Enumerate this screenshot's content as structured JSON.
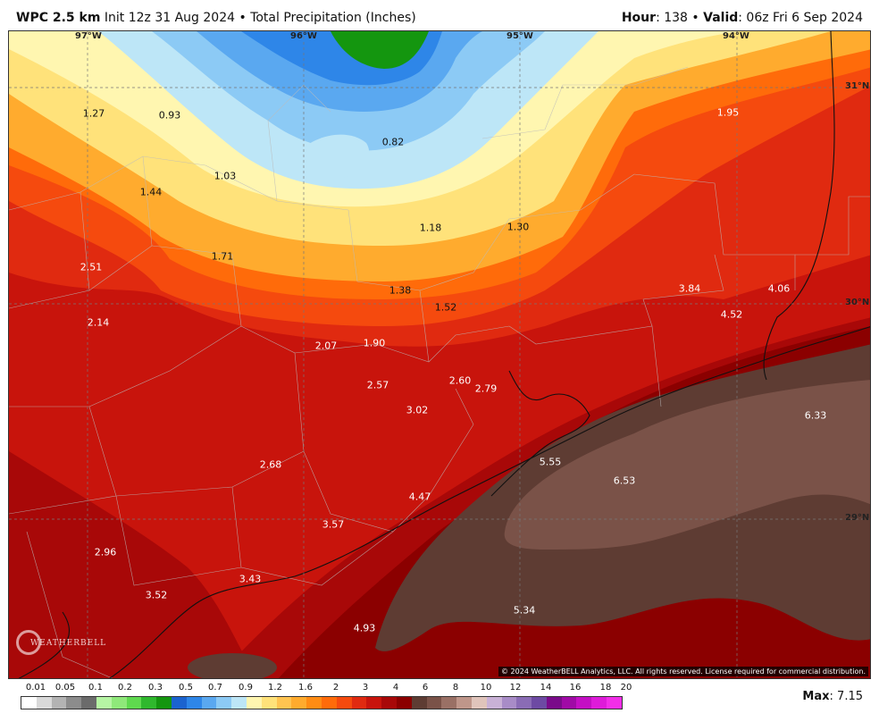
{
  "header": {
    "model": "WPC 2.5 km",
    "init": "Init 12z 31 Aug 2024",
    "bullet": "•",
    "product": "Total Precipitation (Inches)",
    "hour_label": "Hour",
    "hour_value": ": 138",
    "valid_label": "Valid",
    "valid_value": ": 06z Fri 6 Sep 2024"
  },
  "map": {
    "longitudes": [
      "97°W",
      "96°W",
      "95°W",
      "94°W"
    ],
    "latitudes": [
      "31°N",
      "30°N",
      "29°N"
    ],
    "values": [
      "1.27",
      "0.93",
      "0.82",
      "1.95",
      "1.03",
      "1.44",
      "1.18",
      "1.30",
      "2.51",
      "1.71",
      "1.38",
      "3.84",
      "4.06",
      "1.52",
      "4.52",
      "2.14",
      "2.07",
      "1.90",
      "2.60",
      "2.57",
      "2.79",
      "3.02",
      "6.33",
      "5.55",
      "2.68",
      "6.53",
      "4.47",
      "3.57",
      "2.96",
      "3.43",
      "3.52",
      "5.34",
      "4.93"
    ],
    "copyright": "© 2024 WeatherBELL Analytics, LLC. All rights reserved. License required for commercial distribution.",
    "logo": "WEATHERBELL"
  },
  "legend": {
    "labels": [
      "0.01",
      "0.05",
      "0.1",
      "0.2",
      "0.3",
      "0.5",
      "0.7",
      "0.9",
      "1.2",
      "1.6",
      "2",
      "3",
      "4",
      "6",
      "8",
      "10",
      "12",
      "14",
      "16",
      "18",
      "20"
    ],
    "colors": [
      "#ffffff",
      "#d9d9d9",
      "#b3b3b3",
      "#8c8c8c",
      "#6b6b6b",
      "#b6f5a4",
      "#8fe87a",
      "#5fd94f",
      "#2fb82d",
      "#14960f",
      "#1b63cf",
      "#2e86e8",
      "#5aa8f0",
      "#8ccaf5",
      "#bde6f7",
      "#fff6b0",
      "#ffe27a",
      "#ffc451",
      "#ffab2e",
      "#ff8c14",
      "#ff6b0a",
      "#f54a0e",
      "#e02a10",
      "#c8140c",
      "#a80808",
      "#8b0000",
      "#5e3c33",
      "#7a5248",
      "#9a7065",
      "#bf968a",
      "#e0c4bb",
      "#c9b1d6",
      "#a88cc7",
      "#8a6cb5",
      "#6d4aa3",
      "#7a0b8a",
      "#a00aa6",
      "#c40fc4",
      "#de1bd9",
      "#f22ee8"
    ],
    "max_label": "Max",
    "max_value": ": 7.15"
  }
}
